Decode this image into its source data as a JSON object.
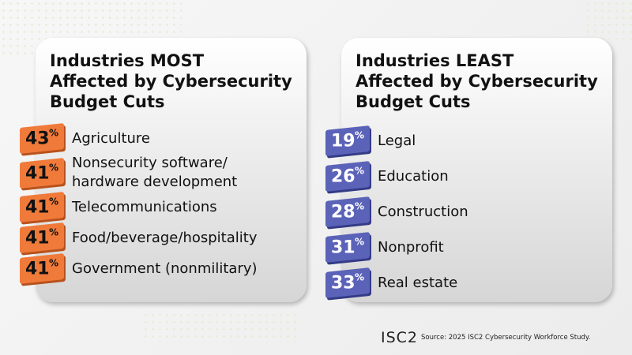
{
  "panels": [
    {
      "title_lines": [
        "Industries MOST",
        "Affected by Cybersecurity",
        "Budget Cuts"
      ],
      "items": [
        {
          "value": 43,
          "unit": "%",
          "label_lines": [
            "Agriculture"
          ]
        },
        {
          "value": 41,
          "unit": "%",
          "label_lines": [
            "Nonsecurity software/",
            "hardware development"
          ]
        },
        {
          "value": 41,
          "unit": "%",
          "label_lines": [
            "Telecommunications"
          ]
        },
        {
          "value": 41,
          "unit": "%",
          "label_lines": [
            "Food/beverage/hospitality"
          ]
        },
        {
          "value": 41,
          "unit": "%",
          "label_lines": [
            "Government (nonmilitary)"
          ]
        }
      ]
    },
    {
      "title_lines": [
        "Industries LEAST",
        "Affected by Cybersecurity",
        "Budget Cuts"
      ],
      "items": [
        {
          "value": 19,
          "unit": "%",
          "label_lines": [
            "Legal"
          ]
        },
        {
          "value": 26,
          "unit": "%",
          "label_lines": [
            "Education"
          ]
        },
        {
          "value": 28,
          "unit": "%",
          "label_lines": [
            "Construction"
          ]
        },
        {
          "value": 31,
          "unit": "%",
          "label_lines": [
            "Nonprofit"
          ]
        },
        {
          "value": 33,
          "unit": "%",
          "label_lines": [
            "Real estate"
          ]
        }
      ]
    }
  ],
  "footer": {
    "logo": "ISC2",
    "source": "Source: 2025 ISC2 Cybersecurity Workforce Study."
  }
}
